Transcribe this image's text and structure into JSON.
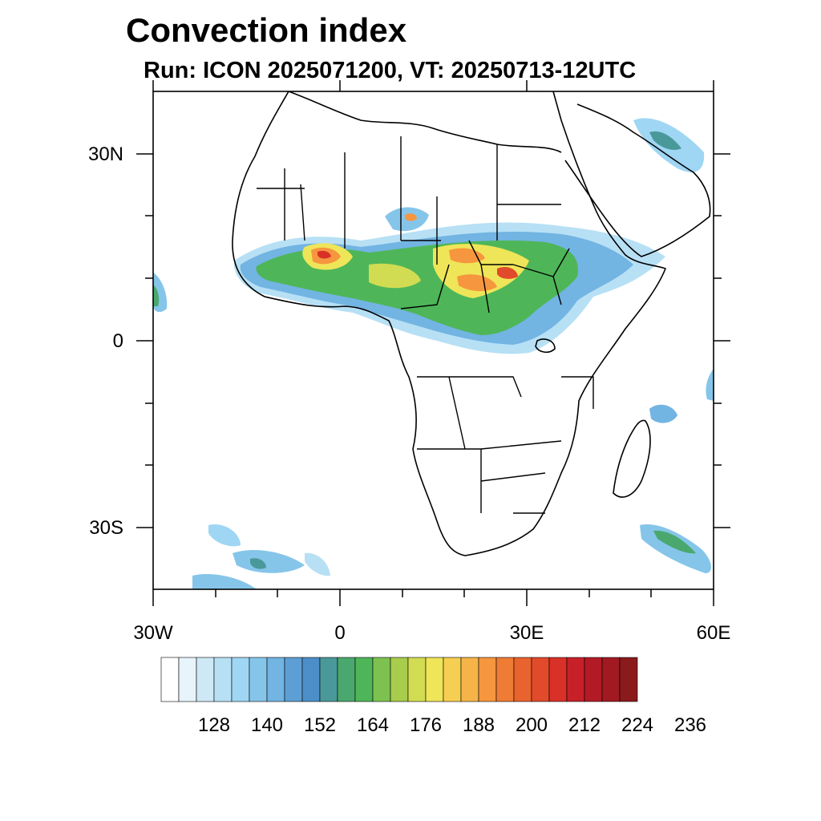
{
  "title": "Convection index",
  "subtitle": "Run: ICON 2025071200,  VT: 20250713-12UTC",
  "map": {
    "projection": "cylindrical equidistant",
    "lon_range": [
      -30,
      60
    ],
    "lat_range": [
      -40,
      40
    ],
    "lon_ticks": [
      {
        "value": -30,
        "label": "30W"
      },
      {
        "value": 0,
        "label": "0"
      },
      {
        "value": 30,
        "label": "30E"
      },
      {
        "value": 60,
        "label": "60E"
      }
    ],
    "lat_ticks": [
      {
        "value": 30,
        "label": "30N"
      },
      {
        "value": 0,
        "label": "0"
      },
      {
        "value": -30,
        "label": "30S"
      }
    ],
    "colorbar": {
      "colors": [
        "#ffffff",
        "#e8f4fb",
        "#cfe8f6",
        "#b7e0f5",
        "#9fd6f3",
        "#86c5ea",
        "#72b4e2",
        "#5d9fd4",
        "#4c8fc8",
        "#4a999a",
        "#4aa86e",
        "#4eb658",
        "#7dc250",
        "#a8cc4c",
        "#d2dc52",
        "#efe558",
        "#f6cf52",
        "#f6b448",
        "#f6963e",
        "#ef7c35",
        "#e9632e",
        "#e14a2a",
        "#d93028",
        "#c82028",
        "#b21b26",
        "#a11a22",
        "#8b1a1c"
      ],
      "labels": [
        "128",
        "140",
        "152",
        "164",
        "176",
        "188",
        "200",
        "212",
        "224",
        "236"
      ]
    },
    "legend_key": "Convection index color scale"
  }
}
